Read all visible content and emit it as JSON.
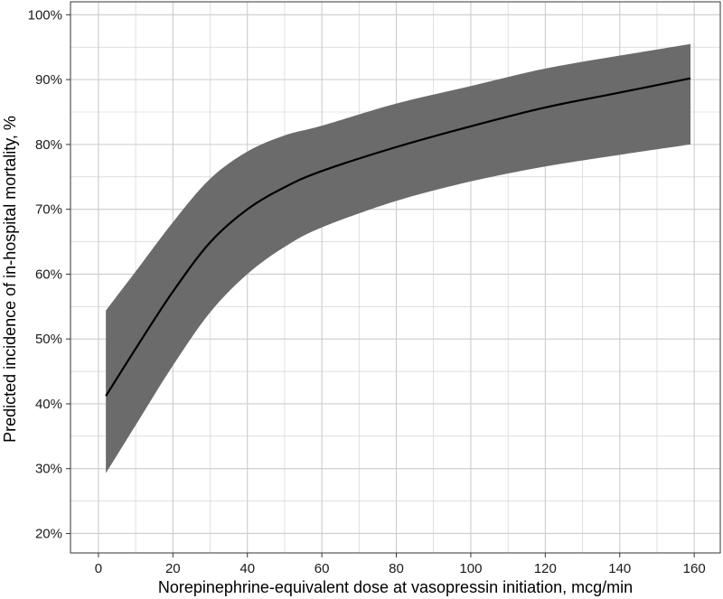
{
  "chart_data": {
    "type": "line",
    "xlabel": "Norepinephrine-equivalent dose at vasopressin initiation, mcg/min",
    "ylabel": "Predicted incidence of in-hospital mortality, %",
    "xlim": [
      -7.5,
      167
    ],
    "ylim": [
      17,
      102
    ],
    "x_ticks": [
      0,
      20,
      40,
      60,
      80,
      100,
      120,
      140,
      160
    ],
    "y_ticks": [
      20,
      30,
      40,
      50,
      60,
      70,
      80,
      90,
      100
    ],
    "y_tick_labels": [
      "20%",
      "30%",
      "40%",
      "50%",
      "60%",
      "70%",
      "80%",
      "90%",
      "100%"
    ],
    "x_minor_ticks": [
      -10,
      10,
      30,
      50,
      70,
      90,
      110,
      130,
      150
    ],
    "y_minor_ticks": [
      25,
      35,
      45,
      55,
      65,
      75,
      85,
      95
    ],
    "grid": true,
    "series": [
      {
        "x": [
          2,
          10,
          20,
          30,
          40,
          50,
          60,
          80,
          100,
          120,
          140,
          159
        ],
        "y": [
          41.2,
          48.5,
          57.3,
          64.9,
          70.0,
          73.4,
          75.9,
          79.6,
          82.8,
          85.7,
          88.0,
          90.2
        ],
        "lower": [
          29.3,
          36.7,
          45.9,
          54.1,
          60.0,
          64.2,
          67.2,
          71.3,
          74.3,
          76.6,
          78.4,
          80.0
        ],
        "upper": [
          54.4,
          60.4,
          68.0,
          74.7,
          78.9,
          81.4,
          82.9,
          86.3,
          89.0,
          91.7,
          93.7,
          95.5
        ]
      }
    ],
    "colors": {
      "band": "#6b6b6b",
      "line": "#000000",
      "grid": "#cccccc",
      "panel_border": "#333333"
    }
  }
}
